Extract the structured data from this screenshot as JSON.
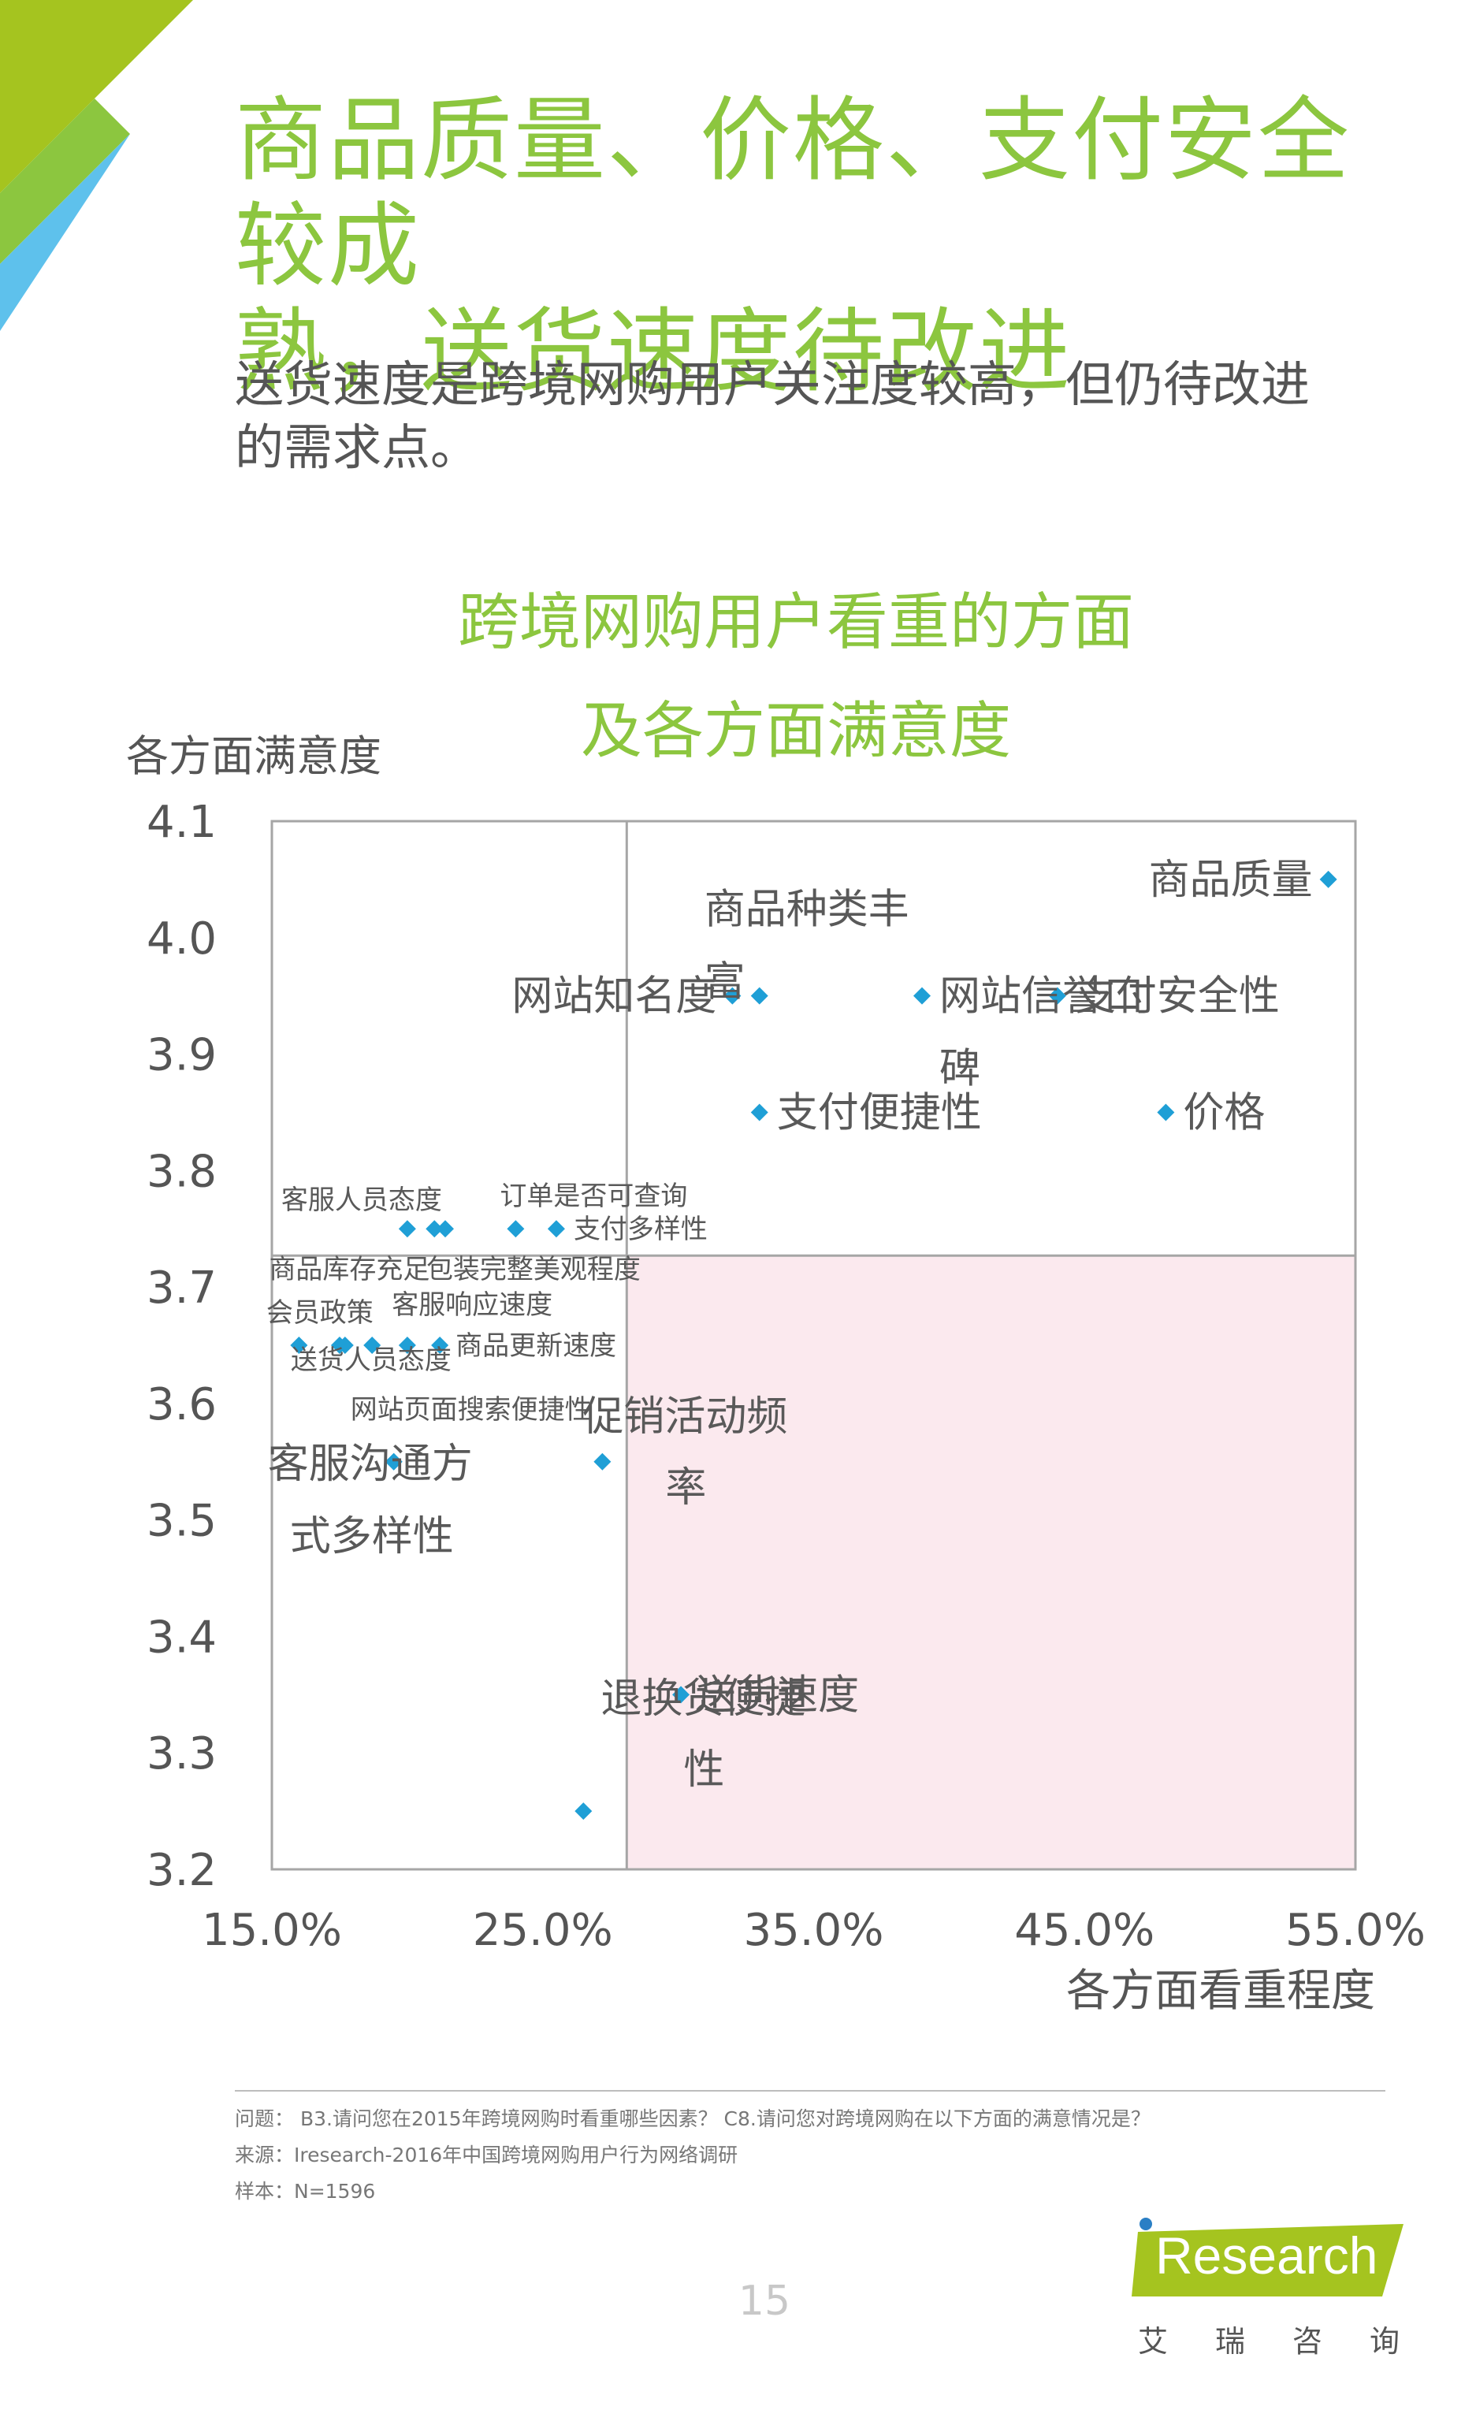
{
  "page": {
    "title_line1": "商品质量、价格、支付安全较成",
    "title_line2": "熟，送货速度待改进",
    "subtitle_line1": "送货速度是跨境网购用户关注度较高，但仍待改进",
    "subtitle_line2": "的需求点。",
    "chart_title_line1": "跨境网购用户看重的方面",
    "chart_title_line2": "及各方面满意度",
    "footnote_question": "问题： B3.请问您在2015年跨境网购时看重哪些因素？  C8.请问您对跨境网购在以下方面的满意情况是？",
    "footnote_source": "来源：Iresearch-2016年中国跨境网购用户行为网络调研",
    "footnote_sample": "样本：N=1596",
    "page_number": "15",
    "logo_text": "Research",
    "logo_cn": "艾瑞咨询"
  },
  "colors": {
    "title_green": "#8cc63f",
    "marker_blue": "#1f9fd6",
    "quadrant_pink": "#fbe9ee",
    "corner_lime": "#a5c41f",
    "corner_green": "#8cc63f",
    "corner_blue": "#5ec1ec"
  },
  "chart_data": {
    "type": "scatter",
    "xlabel": "各方面看重程度",
    "ylabel": "各方面满意度",
    "xlim": [
      0.15,
      0.55
    ],
    "ylim": [
      3.2,
      4.1
    ],
    "x_ticks": [
      "15.0%",
      "25.0%",
      "35.0%",
      "45.0%",
      "55.0%"
    ],
    "y_ticks": [
      "3.2",
      "3.3",
      "3.4",
      "3.5",
      "3.6",
      "3.7",
      "3.8",
      "3.9",
      "4.0",
      "4.1"
    ],
    "divider_x": 0.281,
    "divider_y": 3.727,
    "highlight_quadrant": "bottom-right",
    "points": [
      {
        "label": "商品质量",
        "x": 0.54,
        "y": 4.05
      },
      {
        "label": "支付安全性",
        "x": 0.44,
        "y": 3.95
      },
      {
        "label": "价格",
        "x": 0.48,
        "y": 3.85
      },
      {
        "label": "网站信誉口碑",
        "x": 0.39,
        "y": 3.95
      },
      {
        "label": "商品种类丰富",
        "x": 0.33,
        "y": 3.95
      },
      {
        "label": "网站知名度",
        "x": 0.32,
        "y": 3.95
      },
      {
        "label": "支付便捷性",
        "x": 0.33,
        "y": 3.85
      },
      {
        "label": "订单是否可查询",
        "x": 0.24,
        "y": 3.75
      },
      {
        "label": "支付多样性",
        "x": 0.255,
        "y": 3.75
      },
      {
        "label": "客服人员态度",
        "x": 0.2,
        "y": 3.75
      },
      {
        "label": "",
        "x": 0.21,
        "y": 3.75
      },
      {
        "label": "",
        "x": 0.214,
        "y": 3.75
      },
      {
        "label": "商品库存充足",
        "x": 0.16,
        "y": 3.65
      },
      {
        "label": "包装完整美观程度",
        "x": 0.175,
        "y": 3.65
      },
      {
        "label": "会员政策",
        "x": 0.177,
        "y": 3.65
      },
      {
        "label": "客服响应速度",
        "x": 0.187,
        "y": 3.65
      },
      {
        "label": "送货人员态度",
        "x": 0.2,
        "y": 3.65
      },
      {
        "label": "商品更新速度",
        "x": 0.212,
        "y": 3.65
      },
      {
        "label": "网站页面搜索便捷性",
        "x": 0.195,
        "y": 3.55
      },
      {
        "label": "客服沟通方式多样性",
        "x": 0.195,
        "y": 3.55
      },
      {
        "label": "促销活动频率",
        "x": 0.272,
        "y": 3.55
      },
      {
        "label": "送货速度",
        "x": 0.301,
        "y": 3.35
      },
      {
        "label": "退换货便捷性",
        "x": 0.265,
        "y": 3.25
      }
    ]
  }
}
